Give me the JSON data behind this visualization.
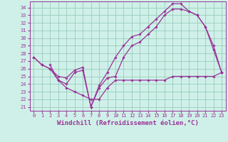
{
  "background_color": "#cff0e8",
  "grid_color": "#99ccbb",
  "line_color": "#993399",
  "xlabel": "Windchill (Refroidissement éolien,°C)",
  "xlabel_fontsize": 6.5,
  "xlim": [
    -0.5,
    23.5
  ],
  "ylim": [
    20.5,
    34.8
  ],
  "yticks": [
    21,
    22,
    23,
    24,
    25,
    26,
    27,
    28,
    29,
    30,
    31,
    32,
    33,
    34
  ],
  "xticks": [
    0,
    1,
    2,
    3,
    4,
    5,
    6,
    7,
    8,
    9,
    10,
    11,
    12,
    13,
    14,
    15,
    16,
    17,
    18,
    19,
    20,
    21,
    22,
    23
  ],
  "tick_fontsize": 5,
  "curve1_x": [
    0,
    1,
    2,
    3,
    4,
    5,
    6,
    7,
    8,
    9,
    10,
    11,
    12,
    13,
    14,
    15,
    16,
    17,
    18,
    19,
    20,
    21,
    22,
    23
  ],
  "curve1_y": [
    27.5,
    26.5,
    26.0,
    25.0,
    24.8,
    25.8,
    26.2,
    21.0,
    23.5,
    24.8,
    25.0,
    27.5,
    29.0,
    29.5,
    30.5,
    31.5,
    33.0,
    33.8,
    33.8,
    33.5,
    33.0,
    31.5,
    28.5,
    25.5
  ],
  "curve2_x": [
    2,
    3,
    4,
    5,
    6,
    7,
    8,
    9,
    10,
    11,
    12,
    13,
    14,
    15,
    16,
    17,
    18,
    19,
    20,
    21,
    22,
    23
  ],
  "curve2_y": [
    26.5,
    24.5,
    23.5,
    23.0,
    22.5,
    22.0,
    22.0,
    23.5,
    24.5,
    24.5,
    24.5,
    24.5,
    24.5,
    24.5,
    24.5,
    25.0,
    25.0,
    25.0,
    25.0,
    25.0,
    25.0,
    25.5
  ],
  "curve3_x": [
    0,
    1,
    2,
    3,
    4,
    5,
    6,
    7,
    8,
    9,
    10,
    11,
    12,
    13,
    14,
    15,
    16,
    17,
    18,
    19,
    20,
    21,
    22,
    23
  ],
  "curve3_y": [
    27.5,
    26.5,
    26.0,
    24.5,
    24.0,
    25.5,
    25.8,
    21.0,
    23.8,
    25.5,
    27.5,
    29.0,
    30.2,
    30.5,
    31.5,
    32.5,
    33.5,
    34.5,
    34.5,
    33.5,
    33.0,
    31.5,
    29.0,
    25.5
  ]
}
